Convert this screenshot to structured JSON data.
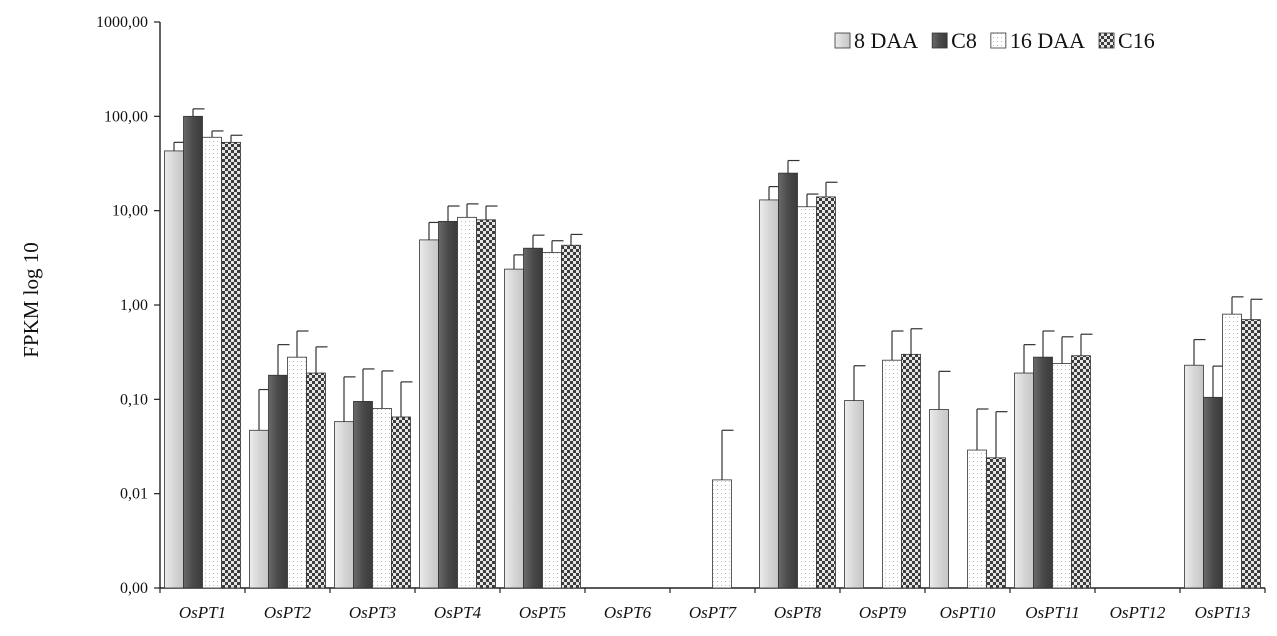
{
  "chart_data": {
    "type": "bar",
    "title": "",
    "xlabel": "",
    "ylabel": "FPKM log 10",
    "yscale": "log",
    "ylim": [
      0.001,
      1000
    ],
    "yticks": [
      0.001,
      0.01,
      0.1,
      1,
      10,
      100,
      1000
    ],
    "ytick_labels": [
      "0,00",
      "0,01",
      "0,10",
      "1,00",
      "10,00",
      "100,00",
      "1000,00"
    ],
    "grid": false,
    "legend_position": "top-right",
    "categories": [
      "OsPT1",
      "OsPT2",
      "OsPT3",
      "OsPT4",
      "OsPT5",
      "OsPT6",
      "OsPT7",
      "OsPT8",
      "OsPT9",
      "OsPT10",
      "OsPT11",
      "OsPT12",
      "OsPT13"
    ],
    "series": [
      {
        "name": "8 DAA",
        "color": "#d9d9d9",
        "pattern": "solid-light",
        "values": [
          43,
          0.047,
          0.058,
          4.9,
          2.4,
          null,
          null,
          13,
          0.097,
          0.078,
          0.19,
          null,
          0.23
        ],
        "errors": [
          10,
          0.08,
          0.115,
          2.6,
          1.0,
          null,
          null,
          5.0,
          0.13,
          0.12,
          0.19,
          null,
          0.2
        ]
      },
      {
        "name": "C8",
        "color": "#555555",
        "pattern": "solid-dark",
        "values": [
          100,
          0.18,
          0.095,
          7.7,
          4.0,
          null,
          null,
          25,
          null,
          null,
          0.28,
          null,
          0.105
        ],
        "errors": [
          20,
          0.2,
          0.115,
          3.5,
          1.5,
          null,
          null,
          9.0,
          null,
          null,
          0.25,
          null,
          0.12
        ]
      },
      {
        "name": "16 DAA",
        "color": "#ffffff",
        "pattern": "dotted-white",
        "values": [
          60,
          0.28,
          0.08,
          8.5,
          3.6,
          null,
          0.014,
          11,
          0.26,
          0.029,
          0.24,
          null,
          0.8
        ],
        "errors": [
          10,
          0.25,
          0.12,
          3.3,
          1.2,
          null,
          0.033,
          4.0,
          0.27,
          0.05,
          0.22,
          null,
          0.42
        ]
      },
      {
        "name": "C16",
        "color": "#6e6e6e",
        "pattern": "checker",
        "values": [
          53,
          0.19,
          0.065,
          8.0,
          4.3,
          null,
          null,
          14,
          0.3,
          0.024,
          0.29,
          null,
          0.7
        ],
        "errors": [
          10,
          0.17,
          0.088,
          3.2,
          1.3,
          null,
          null,
          6.0,
          0.26,
          0.05,
          0.2,
          null,
          0.45
        ]
      }
    ]
  }
}
